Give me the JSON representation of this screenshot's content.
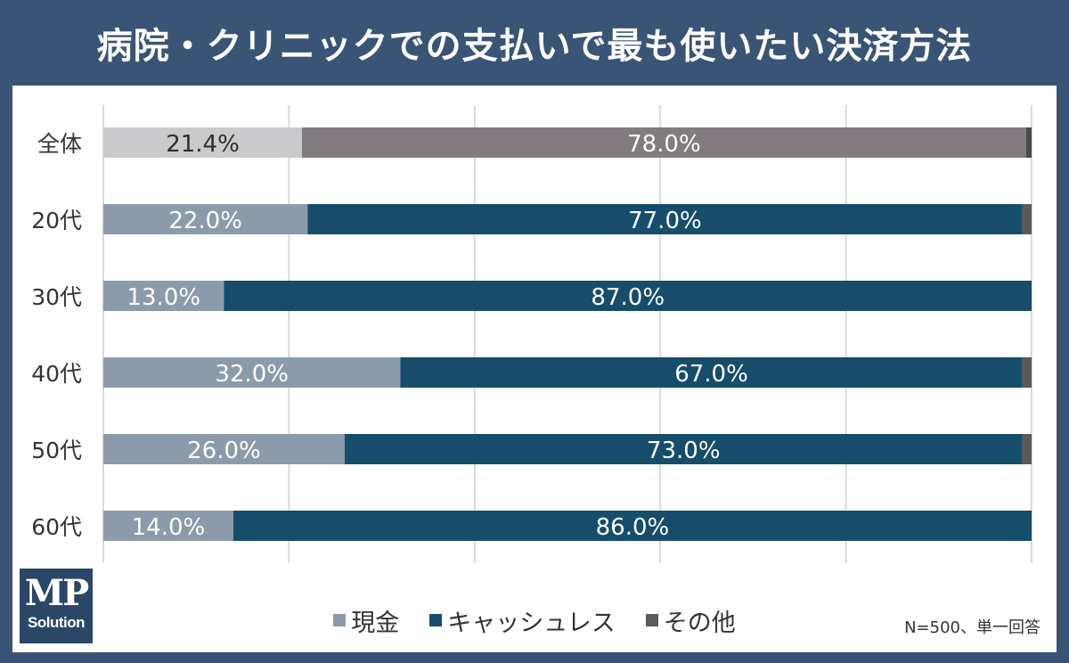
{
  "title": "病院・クリニックでの支払いで最も使いたい決済方法",
  "note": "N=500、単一回答",
  "logo": {
    "main": "MP",
    "sub": "Solution"
  },
  "legend": [
    {
      "label": "現金",
      "color": "#8c9bab"
    },
    {
      "label": "キャッシュレス",
      "color": "#164d6b"
    },
    {
      "label": "その他",
      "color": "#5a5a5a"
    }
  ],
  "chart_data": {
    "type": "bar",
    "orientation": "horizontal",
    "stacked": true,
    "xlim": [
      0,
      100
    ],
    "grid": true,
    "legend_position": "bottom",
    "categories": [
      "全体",
      "20代",
      "30代",
      "40代",
      "50代",
      "60代"
    ],
    "series": [
      {
        "name": "現金",
        "values": [
          21.4,
          22.0,
          13.0,
          32.0,
          26.0,
          14.0
        ],
        "labels": [
          "21.4%",
          "22.0%",
          "13.0%",
          "32.0%",
          "26.0%",
          "14.0%"
        ]
      },
      {
        "name": "キャッシュレス",
        "values": [
          78.0,
          77.0,
          87.0,
          67.0,
          73.0,
          86.0
        ],
        "labels": [
          "78.0%",
          "77.0%",
          "87.0%",
          "67.0%",
          "73.0%",
          "86.0%"
        ]
      },
      {
        "name": "その他",
        "values": [
          0.6,
          1.0,
          0.0,
          1.0,
          1.0,
          0.0
        ]
      }
    ],
    "overall_colors": {
      "現金": "#cbcbcd",
      "キャッシュレス": "#837b80",
      "その他": "#4a4a4a"
    }
  }
}
